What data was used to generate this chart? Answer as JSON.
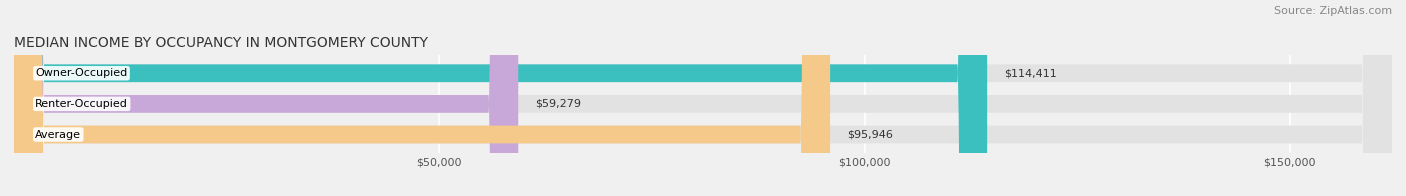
{
  "title": "MEDIAN INCOME BY OCCUPANCY IN MONTGOMERY COUNTY",
  "source": "Source: ZipAtlas.com",
  "categories": [
    "Owner-Occupied",
    "Renter-Occupied",
    "Average"
  ],
  "values": [
    114411,
    59279,
    95946
  ],
  "bar_colors": [
    "#3bbfbf",
    "#c8a8d8",
    "#f5c98a"
  ],
  "bar_labels": [
    "$114,411",
    "$59,279",
    "$95,946"
  ],
  "xlim": [
    0,
    162000
  ],
  "xticks": [
    50000,
    100000,
    150000
  ],
  "xticklabels": [
    "$50,000",
    "$100,000",
    "$150,000"
  ],
  "title_fontsize": 10,
  "source_fontsize": 8,
  "label_fontsize": 8,
  "bar_label_fontsize": 8,
  "background_color": "#f0f0f0",
  "bar_bg_color": "#e2e2e2",
  "bar_height": 0.58
}
